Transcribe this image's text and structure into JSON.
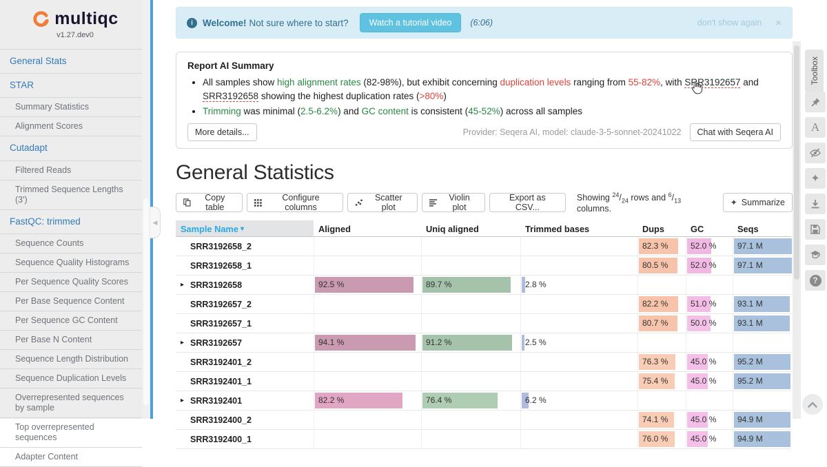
{
  "sidebar": {
    "logo": "multiqc",
    "version": "v1.27.dev0",
    "items": [
      {
        "label": "General Stats",
        "level": "top"
      },
      {
        "label": "STAR",
        "level": "top"
      },
      {
        "label": "Summary Statistics",
        "level": "sub"
      },
      {
        "label": "Alignment Scores",
        "level": "sub"
      },
      {
        "label": "Cutadapt",
        "level": "top"
      },
      {
        "label": "Filtered Reads",
        "level": "sub"
      },
      {
        "label": "Trimmed Sequence Lengths (3')",
        "level": "sub"
      },
      {
        "label": "FastQC: trimmed",
        "level": "top"
      },
      {
        "label": "Sequence Counts",
        "level": "sub"
      },
      {
        "label": "Sequence Quality Histograms",
        "level": "sub"
      },
      {
        "label": "Per Sequence Quality Scores",
        "level": "sub"
      },
      {
        "label": "Per Base Sequence Content",
        "level": "sub"
      },
      {
        "label": "Per Sequence GC Content",
        "level": "sub"
      },
      {
        "label": "Per Base N Content",
        "level": "sub"
      },
      {
        "label": "Sequence Length Distribution",
        "level": "sub"
      },
      {
        "label": "Sequence Duplication Levels",
        "level": "sub"
      },
      {
        "label": "Overrepresented sequences by sample",
        "level": "sub"
      },
      {
        "label": "Top overrepresented sequences",
        "level": "sub"
      },
      {
        "label": "Adapter Content",
        "level": "sub"
      }
    ]
  },
  "banner": {
    "title": "Welcome!",
    "message": "Not sure where to start?",
    "button": "Watch a tutorial video",
    "duration": "(6:06)",
    "dismiss": "don't show again",
    "close": "×"
  },
  "ai_summary": {
    "title": "Report AI Summary",
    "bullets": [
      [
        {
          "t": "All samples show ",
          "c": "p"
        },
        {
          "t": "high alignment rates",
          "c": "g"
        },
        {
          "t": " (82-98%), but exhibit concerning ",
          "c": "p"
        },
        {
          "t": "duplication levels",
          "c": "r"
        },
        {
          "t": " ranging from ",
          "c": "p"
        },
        {
          "t": "55-82%",
          "c": "r"
        },
        {
          "t": ", with ",
          "c": "p"
        },
        {
          "t": "SRR3192657",
          "c": "l"
        },
        {
          "t": " and ",
          "c": "p"
        },
        {
          "t": "SRR3192658",
          "c": "l"
        },
        {
          "t": " showing the highest duplication rates (",
          "c": "p"
        },
        {
          "t": ">80%",
          "c": "r"
        },
        {
          "t": ")",
          "c": "p"
        }
      ],
      [
        {
          "t": "Trimming",
          "c": "g"
        },
        {
          "t": " was minimal (",
          "c": "p"
        },
        {
          "t": "2.5-6.2%",
          "c": "g"
        },
        {
          "t": ") and ",
          "c": "p"
        },
        {
          "t": "GC content",
          "c": "g"
        },
        {
          "t": " is consistent (",
          "c": "p"
        },
        {
          "t": "45-52%",
          "c": "g"
        },
        {
          "t": ") across all samples",
          "c": "p"
        }
      ]
    ],
    "more_button": "More details...",
    "provider": "Provider: Seqera AI, model: claude-3-5-sonnet-20241022",
    "chat_button": "Chat with Seqera AI"
  },
  "stats": {
    "heading": "General Statistics",
    "toolbar": {
      "copy": "Copy table",
      "configure": "Configure columns",
      "scatter": "Scatter plot",
      "violin": "Violin plot",
      "export": "Export as CSV...",
      "showing": {
        "prefix": "Showing",
        "rows_num": "24",
        "rows_den": "24",
        "mid": "rows and",
        "cols_num": "6",
        "cols_den": "13",
        "suffix": "columns."
      },
      "summarize": "Summarize"
    },
    "table": {
      "columns": [
        "Sample Name",
        "Aligned",
        "Uniq aligned",
        "Trimmed bases",
        "Dups",
        "GC",
        "Seqs"
      ],
      "sort_caret": "▾",
      "rows": [
        {
          "name": "SRR3192658_2",
          "parent": false,
          "aligned": null,
          "uniq": null,
          "trim": null,
          "dups": {
            "text": "82.3 %",
            "frac": 0.823,
            "color": "#f8c3ab"
          },
          "gc": {
            "text": "52.0 %",
            "frac": 0.52,
            "color": "#f2b8e4"
          },
          "seqs": {
            "text": "97.1 M",
            "frac": 1.0,
            "color": "#a9c1dc"
          }
        },
        {
          "name": "SRR3192658_1",
          "parent": false,
          "aligned": null,
          "uniq": null,
          "trim": null,
          "dups": {
            "text": "80.5 %",
            "frac": 0.805,
            "color": "#f8c3ab"
          },
          "gc": {
            "text": "52.0 %",
            "frac": 0.52,
            "color": "#f2b8e4"
          },
          "seqs": {
            "text": "97.1 M",
            "frac": 1.0,
            "color": "#a9c1dc"
          }
        },
        {
          "name": "SRR3192658",
          "parent": true,
          "aligned": {
            "text": "92.5 %",
            "frac": 0.925,
            "color": "#ca9ab0"
          },
          "uniq": {
            "text": "89.7 %",
            "frac": 0.897,
            "color": "#a5c3ab"
          },
          "trim": {
            "text": "2.8 %",
            "frac": 0.028,
            "color": "#b0bcdf"
          },
          "dups": null,
          "gc": null,
          "seqs": null
        },
        {
          "name": "SRR3192657_2",
          "parent": false,
          "aligned": null,
          "uniq": null,
          "trim": null,
          "dups": {
            "text": "82.2 %",
            "frac": 0.822,
            "color": "#f8c3ab"
          },
          "gc": {
            "text": "51.0 %",
            "frac": 0.51,
            "color": "#f3bde7"
          },
          "seqs": {
            "text": "93.1 M",
            "frac": 0.959,
            "color": "#a9c1dc"
          }
        },
        {
          "name": "SRR3192657_1",
          "parent": false,
          "aligned": null,
          "uniq": null,
          "trim": null,
          "dups": {
            "text": "80.7 %",
            "frac": 0.807,
            "color": "#f8c3ab"
          },
          "gc": {
            "text": "50.0 %",
            "frac": 0.5,
            "color": "#f4c1e8"
          },
          "seqs": {
            "text": "93.1 M",
            "frac": 0.959,
            "color": "#a9c1dc"
          }
        },
        {
          "name": "SRR3192657",
          "parent": true,
          "aligned": {
            "text": "94.1 %",
            "frac": 0.941,
            "color": "#ca9ab0"
          },
          "uniq": {
            "text": "91.2 %",
            "frac": 0.912,
            "color": "#a5c3ab"
          },
          "trim": {
            "text": "2.5 %",
            "frac": 0.025,
            "color": "#b0bcdf"
          },
          "dups": null,
          "gc": null,
          "seqs": null
        },
        {
          "name": "SRR3192401_2",
          "parent": false,
          "aligned": null,
          "uniq": null,
          "trim": null,
          "dups": {
            "text": "76.3 %",
            "frac": 0.763,
            "color": "#f9ccb5"
          },
          "gc": {
            "text": "45.0 %",
            "frac": 0.45,
            "color": "#f4bfe8"
          },
          "seqs": {
            "text": "95.2 M",
            "frac": 0.98,
            "color": "#a9c1dc"
          }
        },
        {
          "name": "SRR3192401_1",
          "parent": false,
          "aligned": null,
          "uniq": null,
          "trim": null,
          "dups": {
            "text": "75.4 %",
            "frac": 0.754,
            "color": "#f9ccb5"
          },
          "gc": {
            "text": "45.0 %",
            "frac": 0.45,
            "color": "#f4bfe8"
          },
          "seqs": {
            "text": "95.2 M",
            "frac": 0.98,
            "color": "#a9c1dc"
          }
        },
        {
          "name": "SRR3192401",
          "parent": true,
          "aligned": {
            "text": "82.2 %",
            "frac": 0.822,
            "color": "#e0a6c3"
          },
          "uniq": {
            "text": "76.4 %",
            "frac": 0.764,
            "color": "#aecdb2"
          },
          "trim": {
            "text": "6.2 %",
            "frac": 0.062,
            "color": "#b0bcdf"
          },
          "dups": null,
          "gc": null,
          "seqs": null
        },
        {
          "name": "SRR3192400_2",
          "parent": false,
          "aligned": null,
          "uniq": null,
          "trim": null,
          "dups": {
            "text": "74.1 %",
            "frac": 0.741,
            "color": "#f9ccb5"
          },
          "gc": {
            "text": "45.0 %",
            "frac": 0.45,
            "color": "#f4bfe8"
          },
          "seqs": {
            "text": "94.9 M",
            "frac": 0.977,
            "color": "#a9c1dc"
          }
        },
        {
          "name": "SRR3192400_1",
          "parent": false,
          "aligned": null,
          "uniq": null,
          "trim": null,
          "dups": {
            "text": "76.0 %",
            "frac": 0.76,
            "color": "#f9ccb5"
          },
          "gc": {
            "text": "45.0 %",
            "frac": 0.45,
            "color": "#f4bfe8"
          },
          "seqs": {
            "text": "94.9 M",
            "frac": 0.977,
            "color": "#a9c1dc"
          }
        }
      ]
    }
  },
  "toolbox": {
    "tab_label": "Toolbox",
    "icons": [
      "pin-icon",
      "rename-samples-icon",
      "hide-samples-icon",
      "ai-sparkle-icon",
      "download-icon",
      "save-settings-icon",
      "tour-icon",
      "help-icon",
      "scroll-top-icon"
    ]
  },
  "colors": {
    "sidebar_bg": "#ededee",
    "sidebar_accent": "#4da0d8",
    "nav_top_link": "#337ab7",
    "banner_bg": "#d9edf7",
    "banner_text": "#31708f",
    "banner_button": "#5fc2e1",
    "green": "#2a8743",
    "red": "#d9443e",
    "sorted_header": "#29a9e0",
    "logo_orange": "#ef7d3b"
  }
}
